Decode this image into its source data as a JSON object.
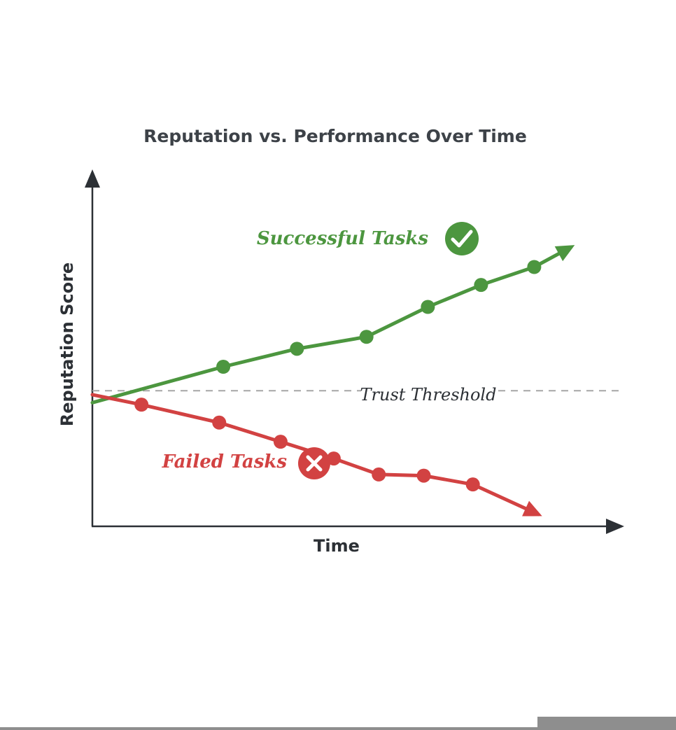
{
  "chart_data": {
    "type": "line",
    "title": "Reputation vs. Performance Over Time",
    "xlabel": "Time",
    "ylabel": "Reputation Score",
    "xlim": [
      0,
      13
    ],
    "ylim": [
      0,
      10
    ],
    "grid": false,
    "series": [
      {
        "name": "Successful Tasks",
        "color": "#4c963f",
        "icon": "check-circle-icon",
        "points": [
          [
            0,
            3.1
          ],
          [
            3.2,
            4.0
          ],
          [
            5.0,
            4.45
          ],
          [
            6.7,
            4.75
          ],
          [
            8.2,
            5.5
          ],
          [
            9.5,
            6.05
          ],
          [
            10.8,
            6.5
          ],
          [
            11.7,
            7.0
          ]
        ],
        "markers": [
          [
            3.2,
            4.0
          ],
          [
            5.0,
            4.45
          ],
          [
            6.7,
            4.75
          ],
          [
            8.2,
            5.5
          ],
          [
            9.5,
            6.05
          ],
          [
            10.8,
            6.5
          ]
        ]
      },
      {
        "name": "Failed Tasks",
        "color": "#d24242",
        "icon": "x-circle-icon",
        "points": [
          [
            0,
            3.3
          ],
          [
            1.2,
            3.05
          ],
          [
            3.1,
            2.6
          ],
          [
            4.6,
            2.12
          ],
          [
            5.9,
            1.7
          ],
          [
            7.0,
            1.3
          ],
          [
            8.1,
            1.27
          ],
          [
            9.3,
            1.05
          ],
          [
            10.9,
            0.3
          ]
        ],
        "markers": [
          [
            1.2,
            3.05
          ],
          [
            3.1,
            2.6
          ],
          [
            4.6,
            2.12
          ],
          [
            5.9,
            1.7
          ],
          [
            7.0,
            1.3
          ],
          [
            8.1,
            1.27
          ],
          [
            9.3,
            1.05
          ]
        ]
      }
    ],
    "reference_line": {
      "label": "Trust Threshold",
      "y": 3.4,
      "style": "dashed",
      "color": "#a6a6a6"
    }
  }
}
